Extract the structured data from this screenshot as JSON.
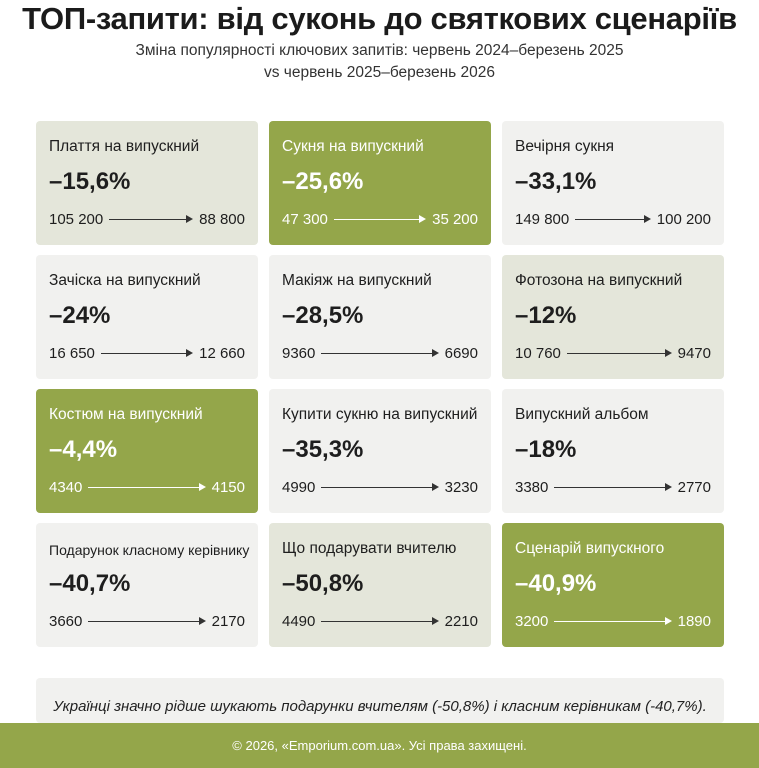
{
  "header": {
    "title": "ТОП-запити: від суконь до святкових сценаріїв",
    "subtitle_line1": "Зміна популярності ключових запитів: червень 2024–березень 2025",
    "subtitle_line2": "vs червень 2025–березень 2026"
  },
  "cards": [
    {
      "label": "Плаття на випускний",
      "pct": "–15,6%",
      "from": "105 200",
      "to": "88 800",
      "style": "beige"
    },
    {
      "label": "Сукня на випускний",
      "pct": "–25,6%",
      "from": "47 300",
      "to": "35 200",
      "style": "green"
    },
    {
      "label": "Вечірня сукня",
      "pct": "–33,1%",
      "from": "149 800",
      "to": "100 200",
      "style": "light"
    },
    {
      "label": "Зачіска на випускний",
      "pct": "–24%",
      "from": "16 650",
      "to": "12 660",
      "style": "light"
    },
    {
      "label": "Макіяж на випускний",
      "pct": "–28,5%",
      "from": "9360",
      "to": "6690",
      "style": "light"
    },
    {
      "label": "Фотозона на випускний",
      "pct": "–12%",
      "from": "10 760",
      "to": "9470",
      "style": "beige"
    },
    {
      "label": "Костюм на випускний",
      "pct": "–4,4%",
      "from": "4340",
      "to": "4150",
      "style": "green"
    },
    {
      "label": "Купити сукню на випускний",
      "pct": "–35,3%",
      "from": "4990",
      "to": "3230",
      "style": "light"
    },
    {
      "label": "Випускний альбом",
      "pct": "–18%",
      "from": "3380",
      "to": "2770",
      "style": "light"
    },
    {
      "label": "Подарунок класному керівнику",
      "pct": "–40,7%",
      "from": "3660",
      "to": "2170",
      "style": "light"
    },
    {
      "label": "Що подарувати вчителю",
      "pct": "–50,8%",
      "from": "4490",
      "to": "2210",
      "style": "beige"
    },
    {
      "label": "Сценарій випускного",
      "pct": "–40,9%",
      "from": "3200",
      "to": "1890",
      "style": "green"
    }
  ],
  "note": "Українці значно рідше шукають подарунки вчителям (-50,8%) і класним керівникам (-40,7%).",
  "footer": "© 2026, «Emporium.com.ua». Усі права захищені.",
  "colors": {
    "green": "#94a64a",
    "beige": "#e4e6da",
    "light": "#f1f1ef"
  }
}
